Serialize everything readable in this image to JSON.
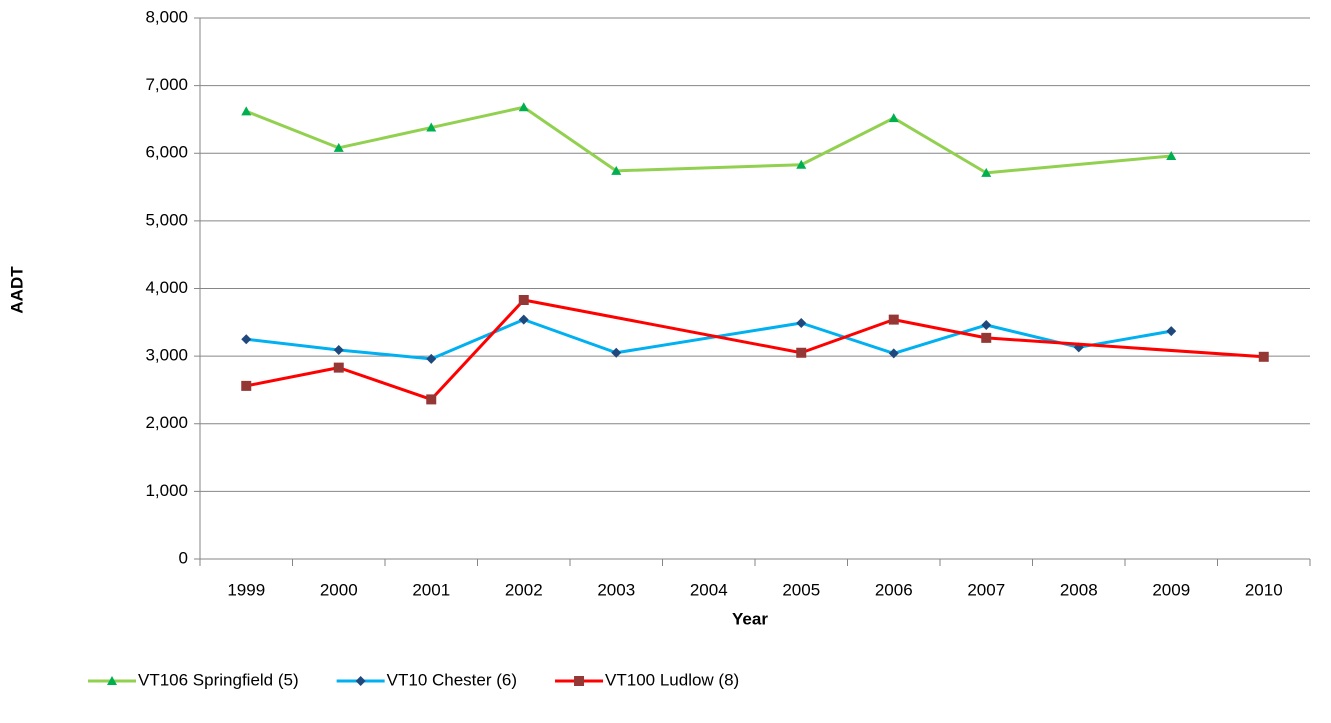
{
  "chart_data": {
    "type": "line",
    "x_label": "Year",
    "y_label": "AADT",
    "categories": [
      "1999",
      "2000",
      "2001",
      "2002",
      "2003",
      "2004",
      "2005",
      "2006",
      "2007",
      "2008",
      "2009",
      "2010"
    ],
    "series": [
      {
        "name": "VT106 Springfield (5)",
        "color": "#92d050",
        "marker_color": "#00b050",
        "marker": "triangle",
        "values": [
          6620,
          6080,
          6380,
          6680,
          5740,
          null,
          5830,
          6520,
          5710,
          null,
          5960,
          null
        ]
      },
      {
        "name": "VT10 Chester (6)",
        "color": "#00b0f0",
        "marker_color": "#1f497d",
        "marker": "diamond",
        "values": [
          3250,
          3090,
          2960,
          3540,
          3050,
          null,
          3490,
          3040,
          3460,
          3130,
          3370,
          null
        ]
      },
      {
        "name": "VT100 Ludlow (8)",
        "color": "#ff0000",
        "marker_color": "#953735",
        "marker": "square",
        "values": [
          2560,
          2830,
          2360,
          3830,
          null,
          null,
          3050,
          3540,
          3270,
          null,
          null,
          2990
        ]
      }
    ],
    "connect_gaps": true,
    "ylim": [
      0,
      8000
    ],
    "yticks": [
      0,
      {
        "value": 1000,
        "label": "1,000"
      },
      {
        "value": 2000,
        "label": "2,000"
      },
      {
        "value": 3000,
        "label": "3,000"
      },
      {
        "value": 4000,
        "label": "4,000"
      },
      {
        "value": 5000,
        "label": "5,000"
      },
      {
        "value": 6000,
        "label": "6,000"
      },
      {
        "value": 7000,
        "label": "7,000"
      },
      {
        "value": 8000,
        "label": "8,000"
      }
    ],
    "grid": true,
    "legend": "bottom"
  }
}
